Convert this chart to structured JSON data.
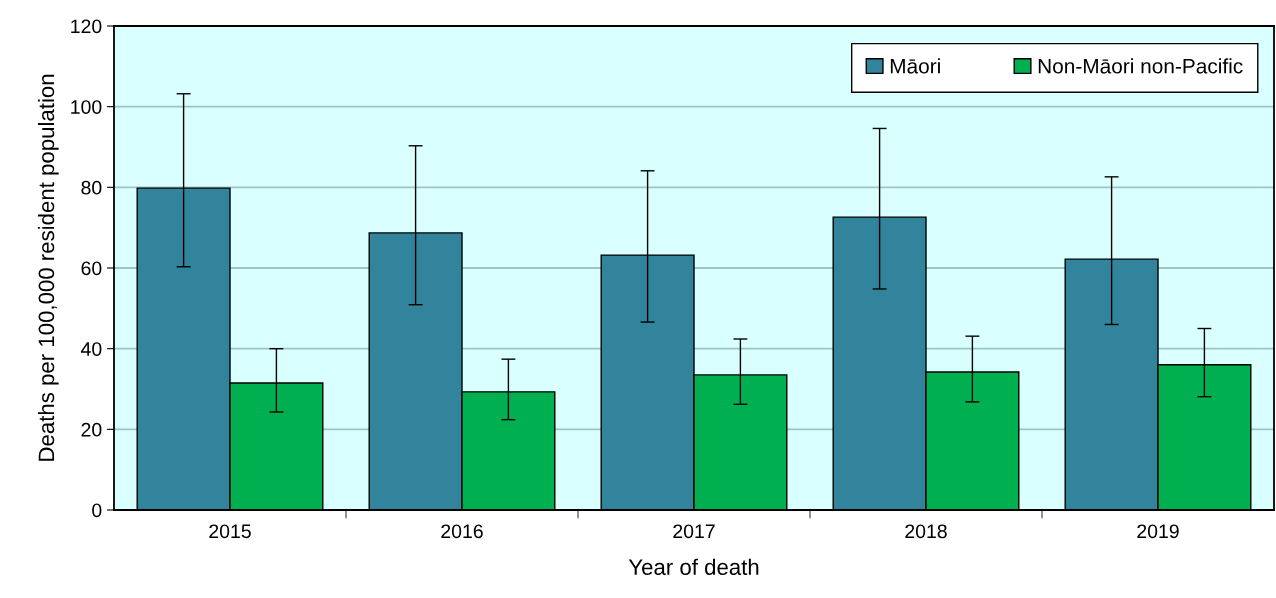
{
  "chart_data": {
    "type": "bar",
    "xlabel": "Year of death",
    "ylabel": "Deaths per 100,000 resident population",
    "categories": [
      "2015",
      "2016",
      "2017",
      "2018",
      "2019"
    ],
    "series": [
      {
        "name": "Māori",
        "color": "#31849b",
        "values": [
          79.8,
          68.7,
          63.2,
          72.6,
          62.2
        ],
        "errors": [
          [
            60.3,
            103.2
          ],
          [
            50.9,
            90.3
          ],
          [
            46.6,
            84.1
          ],
          [
            54.8,
            94.6
          ],
          [
            46.0,
            82.6
          ]
        ]
      },
      {
        "name": "Non-Māori non-Pacific",
        "color": "#00b050",
        "values": [
          31.5,
          29.3,
          33.5,
          34.2,
          36.0
        ],
        "errors": [
          [
            24.3,
            40.0
          ],
          [
            22.4,
            37.4
          ],
          [
            26.2,
            42.4
          ],
          [
            26.8,
            43.1
          ],
          [
            28.1,
            45.0
          ]
        ]
      }
    ],
    "ylim": [
      0,
      120
    ],
    "yticks": [
      0,
      20,
      40,
      60,
      80,
      100,
      120
    ],
    "grid": "y",
    "legend": "top right"
  }
}
